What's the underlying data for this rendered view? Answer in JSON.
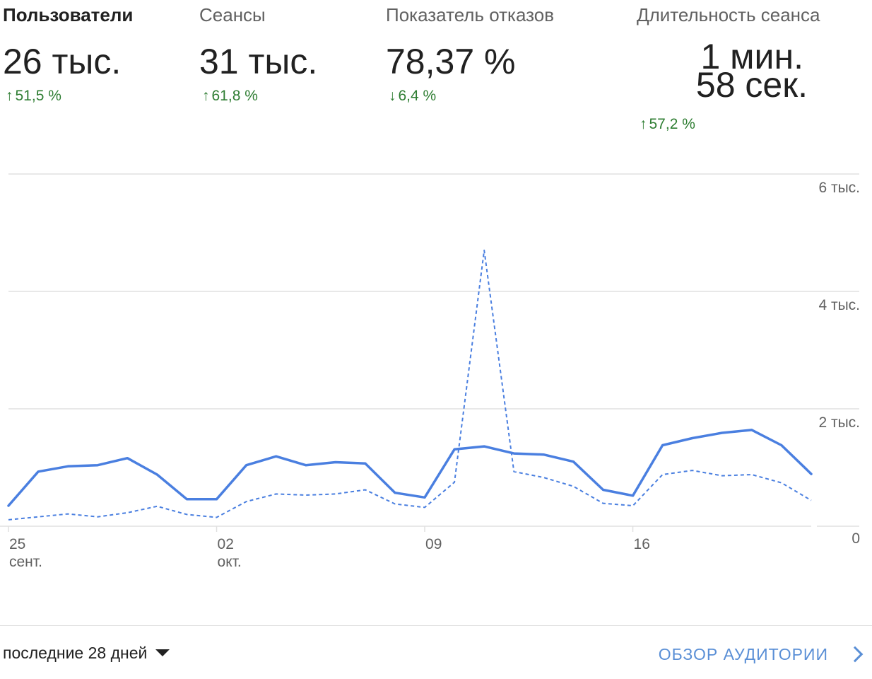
{
  "metrics": [
    {
      "label": "Пользователи",
      "value": "26 тыс.",
      "change": "51,5 %",
      "direction": "up"
    },
    {
      "label": "Сеансы",
      "value": "31 тыс.",
      "change": "61,8 %",
      "direction": "up"
    },
    {
      "label": "Показатель отказов",
      "value": "78,37 %",
      "change": "6,4 %",
      "direction": "down"
    },
    {
      "label": "Длительность сеанса",
      "value_line1": "1 мин.",
      "value_line2": "58 сек.",
      "change": "57,2 %",
      "direction": "up"
    }
  ],
  "colors": {
    "line": "#4a7fe0",
    "grid": "#e0e0e0",
    "positive_change": "#2e7d32",
    "link": "#5a8fd6"
  },
  "icons": {
    "up": "arrow-up-icon",
    "down": "arrow-down-icon",
    "range": "caret-down-icon",
    "link": "chevron-right-icon"
  },
  "chart_data": {
    "type": "line",
    "title": "",
    "xlabel": "",
    "ylabel": "",
    "ylim": [
      0,
      6000
    ],
    "y_ticks": [
      0,
      2000,
      4000,
      6000
    ],
    "y_tick_labels": [
      "0",
      "2 тыс.",
      "4 тыс.",
      "6 тыс."
    ],
    "y_axis_side": "right",
    "grid": true,
    "x": [
      "2023-09-25",
      "2023-09-26",
      "2023-09-27",
      "2023-09-28",
      "2023-09-29",
      "2023-09-30",
      "2023-10-01",
      "2023-10-02",
      "2023-10-03",
      "2023-10-04",
      "2023-10-05",
      "2023-10-06",
      "2023-10-07",
      "2023-10-08",
      "2023-10-09",
      "2023-10-10",
      "2023-10-11",
      "2023-10-12",
      "2023-10-13",
      "2023-10-14",
      "2023-10-15",
      "2023-10-16",
      "2023-10-17",
      "2023-10-18",
      "2023-10-19",
      "2023-10-20",
      "2023-10-21",
      "2023-10-22"
    ],
    "x_ticks": [
      {
        "index": 0,
        "day": "25",
        "month": "сент."
      },
      {
        "index": 7,
        "day": "02",
        "month": "окт."
      },
      {
        "index": 14,
        "day": "09",
        "month": ""
      },
      {
        "index": 21,
        "day": "16",
        "month": ""
      }
    ],
    "series": [
      {
        "style": "solid",
        "values": [
          350,
          930,
          1020,
          1040,
          1160,
          880,
          460,
          460,
          1040,
          1190,
          1040,
          1090,
          1070,
          570,
          490,
          1310,
          1360,
          1240,
          1220,
          1100,
          620,
          520,
          1380,
          1500,
          1590,
          1640,
          1380,
          890
        ]
      },
      {
        "style": "dashed",
        "values": [
          110,
          160,
          210,
          160,
          230,
          340,
          200,
          150,
          420,
          550,
          530,
          550,
          620,
          380,
          320,
          750,
          4700,
          930,
          830,
          680,
          390,
          350,
          880,
          950,
          860,
          880,
          740,
          440
        ]
      }
    ]
  },
  "footer": {
    "range_label": "последние 28 дней",
    "link_label": "ОБЗОР АУДИТОРИИ"
  }
}
